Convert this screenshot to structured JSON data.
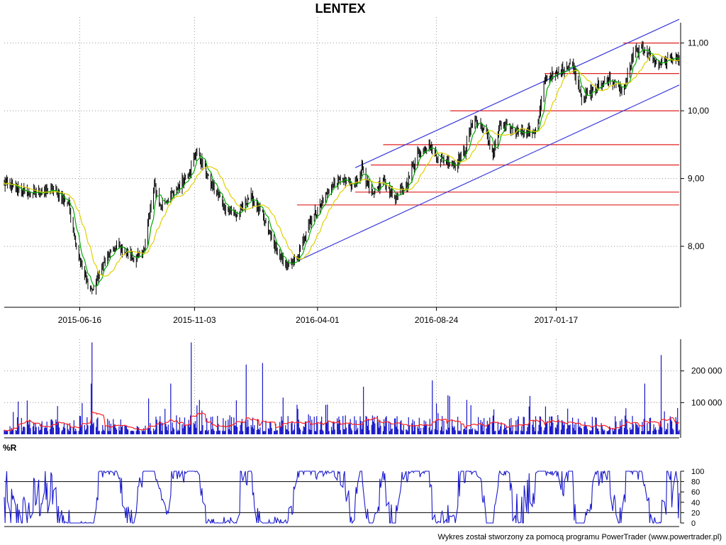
{
  "title": "LENTEX",
  "footer": "Wykres został stworzony za pomocą programu PowerTrader (www.powertrader.pl)",
  "colors": {
    "candle": "#000000",
    "ma_fast": "#00aa00",
    "ma_slow": "#e0d000",
    "channel": "#3b3bdd",
    "support": "#e02020",
    "volume": "#1515c8",
    "volume_avg": "#ff2020",
    "wr": "#1a1acc",
    "grid": "#999999"
  },
  "chart_data": [
    {
      "type": "candlestick",
      "name": "price",
      "grid": true,
      "x_axis": {
        "type": "date",
        "range": [
          "2015-03-16",
          "2017-06-16"
        ],
        "ticks": [
          "2015-06-16",
          "2015-11-03",
          "2016-04-01",
          "2016-08-24",
          "2017-01-17"
        ]
      },
      "y_axis": {
        "position": "right",
        "range": [
          7.1,
          11.3
        ],
        "ticks": [
          "8,00",
          "9,00",
          "10,00",
          "11,00"
        ]
      },
      "keypoints": [
        {
          "x": "2015-03-16",
          "y": 8.92
        },
        {
          "x": "2015-04-15",
          "y": 8.78
        },
        {
          "x": "2015-05-15",
          "y": 8.82
        },
        {
          "x": "2015-06-03",
          "y": 8.62
        },
        {
          "x": "2015-06-12",
          "y": 8.0
        },
        {
          "x": "2015-06-22",
          "y": 7.55
        },
        {
          "x": "2015-07-02",
          "y": 7.35
        },
        {
          "x": "2015-07-15",
          "y": 7.75
        },
        {
          "x": "2015-08-01",
          "y": 8.02
        },
        {
          "x": "2015-08-20",
          "y": 7.82
        },
        {
          "x": "2015-09-01",
          "y": 7.88
        },
        {
          "x": "2015-09-15",
          "y": 8.9
        },
        {
          "x": "2015-09-22",
          "y": 8.6
        },
        {
          "x": "2015-10-10",
          "y": 8.8
        },
        {
          "x": "2015-10-28",
          "y": 9.1
        },
        {
          "x": "2015-11-06",
          "y": 9.42
        },
        {
          "x": "2015-11-20",
          "y": 9.0
        },
        {
          "x": "2015-12-10",
          "y": 8.58
        },
        {
          "x": "2015-12-25",
          "y": 8.45
        },
        {
          "x": "2016-01-10",
          "y": 8.75
        },
        {
          "x": "2016-01-25",
          "y": 8.45
        },
        {
          "x": "2016-02-08",
          "y": 8.02
        },
        {
          "x": "2016-02-20",
          "y": 7.72
        },
        {
          "x": "2016-03-07",
          "y": 7.78
        },
        {
          "x": "2016-03-20",
          "y": 8.32
        },
        {
          "x": "2016-04-02",
          "y": 8.55
        },
        {
          "x": "2016-04-15",
          "y": 8.85
        },
        {
          "x": "2016-05-01",
          "y": 9.0
        },
        {
          "x": "2016-05-15",
          "y": 8.85
        },
        {
          "x": "2016-05-25",
          "y": 9.18
        },
        {
          "x": "2016-06-06",
          "y": 8.72
        },
        {
          "x": "2016-06-20",
          "y": 8.98
        },
        {
          "x": "2016-07-05",
          "y": 8.7
        },
        {
          "x": "2016-07-20",
          "y": 8.95
        },
        {
          "x": "2016-08-01",
          "y": 9.38
        },
        {
          "x": "2016-08-15",
          "y": 9.5
        },
        {
          "x": "2016-08-25",
          "y": 9.3
        },
        {
          "x": "2016-09-15",
          "y": 9.2
        },
        {
          "x": "2016-09-28",
          "y": 9.42
        },
        {
          "x": "2016-10-08",
          "y": 9.88
        },
        {
          "x": "2016-10-22",
          "y": 9.72
        },
        {
          "x": "2016-11-01",
          "y": 9.35
        },
        {
          "x": "2016-11-10",
          "y": 9.8
        },
        {
          "x": "2016-11-25",
          "y": 9.72
        },
        {
          "x": "2016-12-12",
          "y": 9.68
        },
        {
          "x": "2016-12-25",
          "y": 9.72
        },
        {
          "x": "2017-01-03",
          "y": 10.48
        },
        {
          "x": "2017-01-20",
          "y": 10.55
        },
        {
          "x": "2017-02-05",
          "y": 10.72
        },
        {
          "x": "2017-02-18",
          "y": 10.18
        },
        {
          "x": "2017-03-05",
          "y": 10.32
        },
        {
          "x": "2017-03-22",
          "y": 10.48
        },
        {
          "x": "2017-04-08",
          "y": 10.28
        },
        {
          "x": "2017-04-22",
          "y": 10.85
        },
        {
          "x": "2017-05-05",
          "y": 10.92
        },
        {
          "x": "2017-05-20",
          "y": 10.68
        },
        {
          "x": "2017-06-05",
          "y": 10.78
        },
        {
          "x": "2017-06-16",
          "y": 10.75
        }
      ],
      "channel_lines": [
        {
          "from": {
            "x": "2016-05-17",
            "y": 9.16
          },
          "to": {
            "x": "2017-06-16",
            "y": 11.35
          }
        },
        {
          "from": {
            "x": "2016-03-07",
            "y": 7.78
          },
          "to": {
            "x": "2017-06-16",
            "y": 10.38
          }
        }
      ],
      "horizontal_levels": [
        {
          "from": "2017-04-09",
          "to": "2017-06-16",
          "y": 11.0
        },
        {
          "from": "2017-01-03",
          "to": "2017-06-16",
          "y": 10.55
        },
        {
          "from": "2016-09-10",
          "to": "2017-06-16",
          "y": 10.0
        },
        {
          "from": "2016-06-20",
          "to": "2017-06-16",
          "y": 9.5
        },
        {
          "from": "2016-06-05",
          "to": "2017-06-16",
          "y": 9.2
        },
        {
          "from": "2016-05-17",
          "to": "2017-06-16",
          "y": 8.8
        },
        {
          "from": "2016-03-07",
          "to": "2017-06-16",
          "y": 8.61
        }
      ],
      "moving_averages": [
        "fast",
        "slow"
      ]
    },
    {
      "type": "bar",
      "name": "volume",
      "grid": true,
      "y_axis": {
        "position": "right",
        "range": [
          0,
          300000
        ],
        "ticks": [
          "100 000",
          "200 000"
        ]
      },
      "typical_range": [
        10000,
        60000
      ],
      "peaks": [
        {
          "x": "2015-07-01",
          "y": 290000
        },
        {
          "x": "2015-06-30",
          "y": 160000
        },
        {
          "x": "2015-10-30",
          "y": 290000
        },
        {
          "x": "2015-10-05",
          "y": 160000
        },
        {
          "x": "2016-01-05",
          "y": 220000
        },
        {
          "x": "2016-01-25",
          "y": 225000
        },
        {
          "x": "2016-05-28",
          "y": 150000
        },
        {
          "x": "2016-08-20",
          "y": 170000
        },
        {
          "x": "2017-05-25",
          "y": 250000
        },
        {
          "x": "2017-05-05",
          "y": 160000
        }
      ],
      "average_line": true
    },
    {
      "type": "line",
      "name": "%R",
      "title": "%R",
      "grid": false,
      "y_axis": {
        "position": "right",
        "range": [
          0,
          100
        ],
        "ticks": [
          "0",
          "20",
          "40",
          "60",
          "80",
          "100"
        ]
      },
      "reference_lines": [
        20,
        80
      ],
      "value_range": [
        0,
        100
      ]
    }
  ]
}
